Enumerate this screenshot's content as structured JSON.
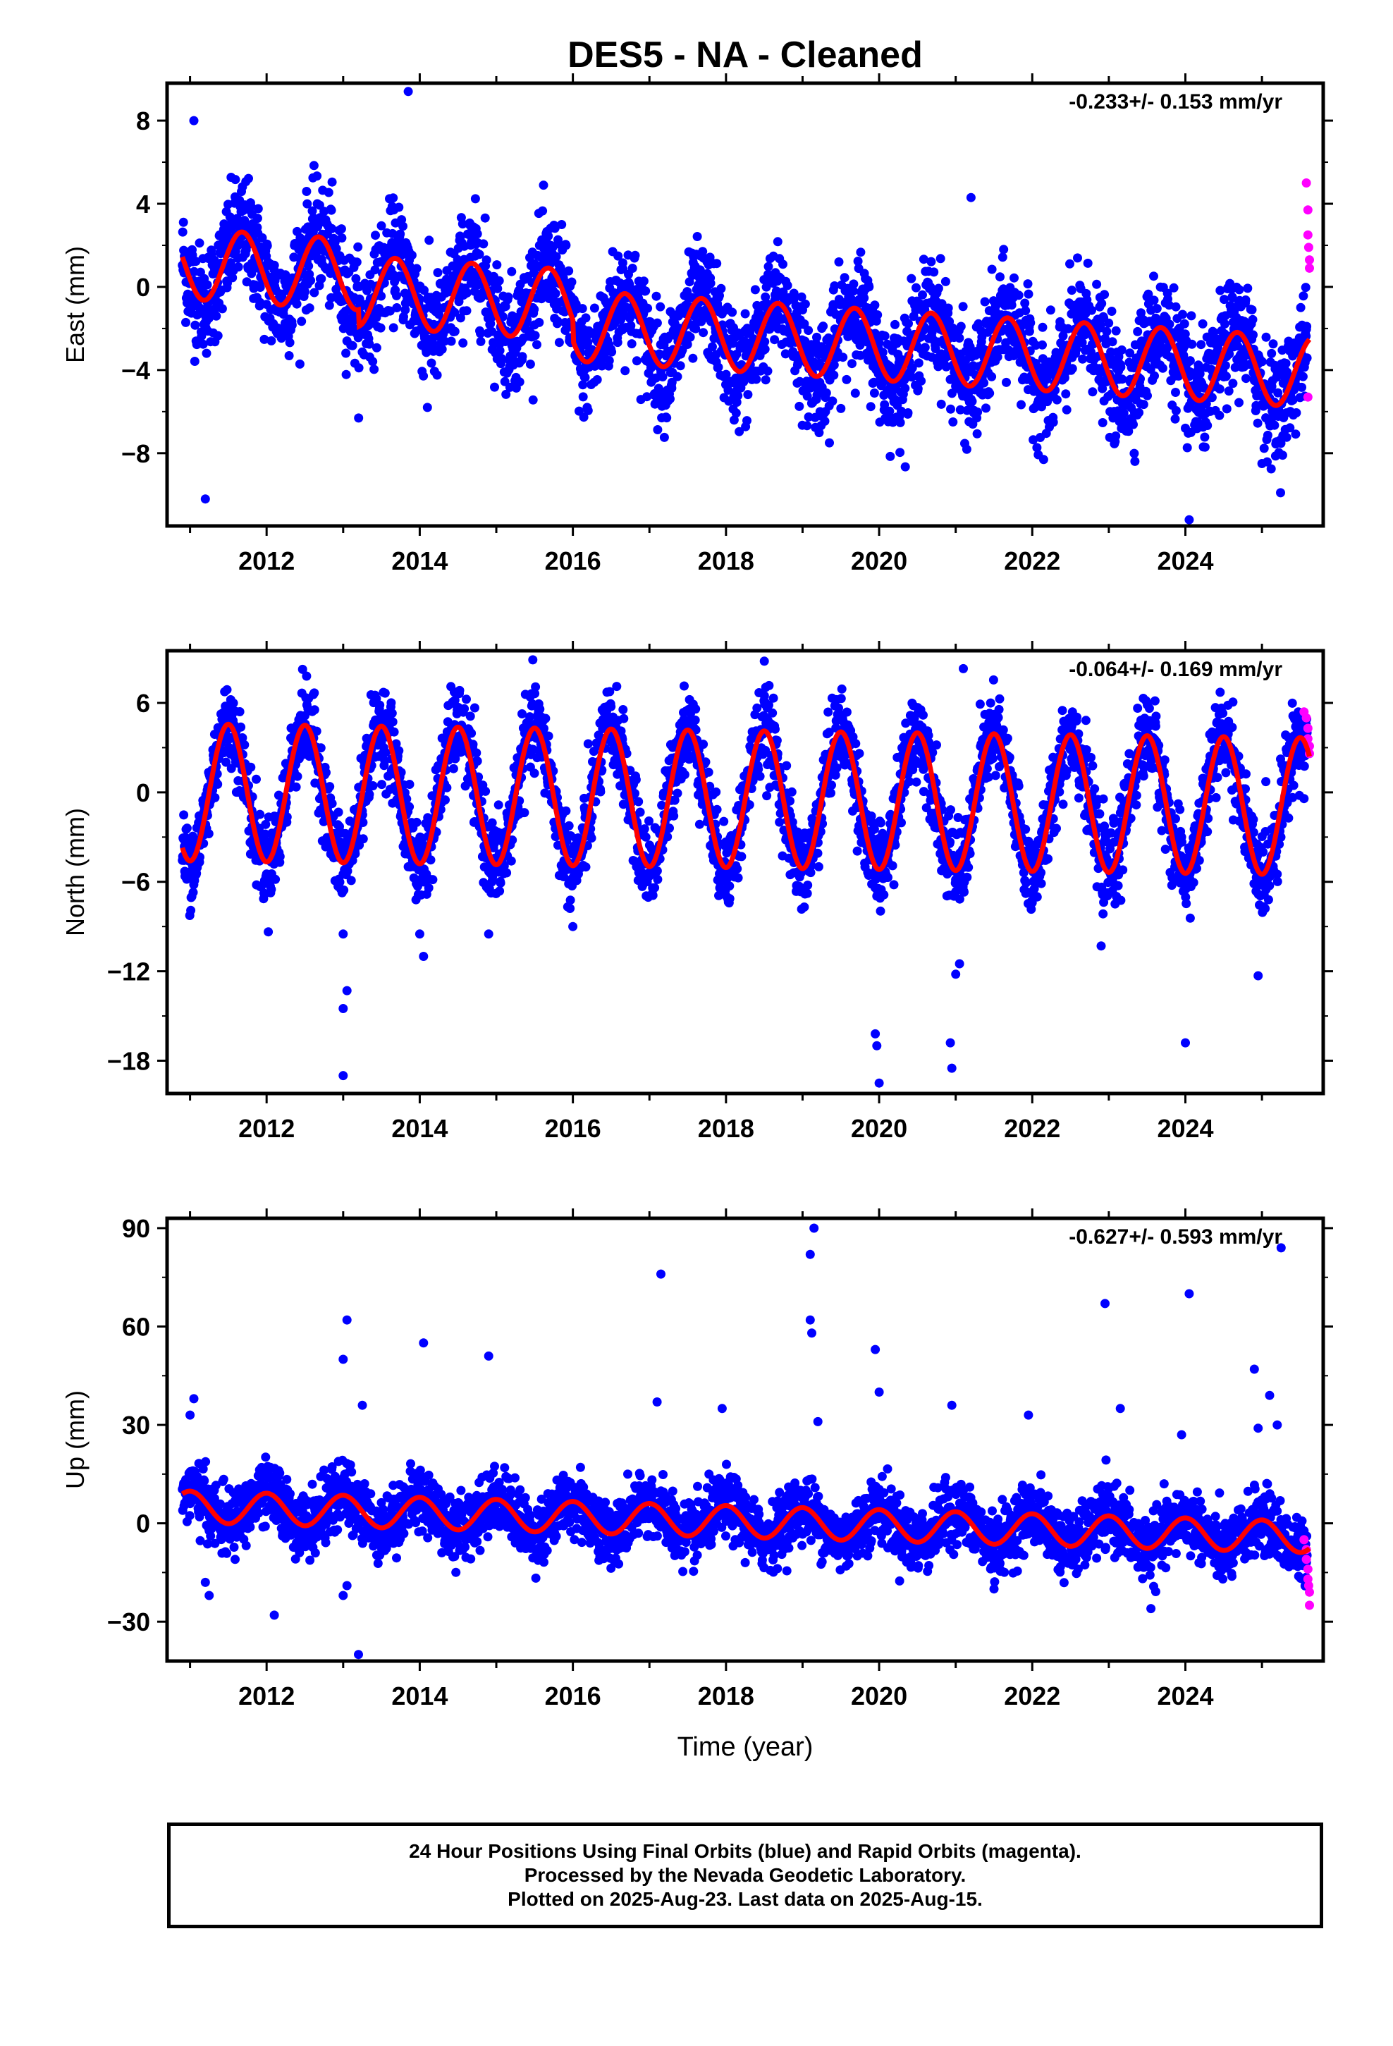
{
  "title": "DES5  - NA - Cleaned",
  "xlabel": "Time (year)",
  "x_tick_labels": [
    "2012",
    "2014",
    "2016",
    "2018",
    "2020",
    "2022",
    "2024"
  ],
  "colors": {
    "final_orbits": "#0000ff",
    "rapid_orbits": "#ff00ff",
    "fit": "#ff0000"
  },
  "footer": {
    "line1": "24 Hour Positions Using Final Orbits (blue) and Rapid Orbits (magenta).",
    "line2": "Processed by the Nevada Geodetic Laboratory.",
    "line3": "Plotted on 2025-Aug-23. Last data on 2025-Aug-15."
  },
  "chart_data": [
    {
      "type": "scatter",
      "panel": "east",
      "ylabel": "East (mm)",
      "rate_label": "-0.233+/- 0.153 mm/yr",
      "xlim": [
        2010.7,
        2025.8
      ],
      "ylim": [
        -11.5,
        9.8
      ],
      "y_ticks": [
        8,
        4,
        0,
        -4,
        -8
      ],
      "y_tick_labels": [
        "8",
        "4",
        "0",
        "−4",
        "−8"
      ],
      "x_ticks": [
        2012,
        2014,
        2016,
        2018,
        2020,
        2022,
        2024
      ],
      "data_start": 2010.9,
      "data_end": 2025.62,
      "seasonal_amplitude": 1.7,
      "seasonal_phase_year": 2011.68,
      "scatter_sigma": 1.3,
      "fit_segments": [
        {
          "x": 2010.9,
          "offset": 0.0
        },
        {
          "x": 2013.0,
          "offset": 0.0
        },
        {
          "x": 2013.2,
          "offset": -0.8
        },
        {
          "x": 2015.8,
          "offset": -0.8
        },
        {
          "x": 2016.0,
          "offset": -1.8
        },
        {
          "x": 2025.62,
          "offset": -1.8
        }
      ],
      "fit_trend": {
        "value_at_2011": 2.3,
        "slope": -0.233
      },
      "outliers": [
        {
          "x": 2011.2,
          "y": -10.2
        },
        {
          "x": 2011.05,
          "y": 8.0
        },
        {
          "x": 2013.85,
          "y": 9.4
        },
        {
          "x": 2014.1,
          "y": -5.8
        },
        {
          "x": 2019.35,
          "y": -7.5
        },
        {
          "x": 2019.3,
          "y": -6.0
        },
        {
          "x": 2024.05,
          "y": -11.2
        },
        {
          "x": 2024.0,
          "y": -6.8
        },
        {
          "x": 2025.0,
          "y": -8.5
        },
        {
          "x": 2013.05,
          "y": -2.6
        },
        {
          "x": 2021.2,
          "y": 4.3
        }
      ],
      "rapid_points": [
        {
          "x": 2025.58,
          "y": 5.0
        },
        {
          "x": 2025.6,
          "y": 3.7
        },
        {
          "x": 2025.6,
          "y": 2.5
        },
        {
          "x": 2025.61,
          "y": 1.9
        },
        {
          "x": 2025.62,
          "y": 1.3
        },
        {
          "x": 2025.62,
          "y": 0.9
        },
        {
          "x": 2025.6,
          "y": -5.3
        }
      ]
    },
    {
      "type": "scatter",
      "panel": "north",
      "ylabel": "North (mm)",
      "rate_label": "-0.064+/- 0.169 mm/yr",
      "xlim": [
        2010.7,
        2025.8
      ],
      "ylim": [
        -20.2,
        9.5
      ],
      "y_ticks": [
        6,
        0,
        -6,
        -12,
        -18
      ],
      "y_tick_labels": [
        "6",
        "0",
        "−6",
        "−12",
        "−18"
      ],
      "x_ticks": [
        2012,
        2014,
        2016,
        2018,
        2020,
        2022,
        2024
      ],
      "data_start": 2010.9,
      "data_end": 2025.62,
      "seasonal_amplitude": 4.6,
      "seasonal_phase_year": 2011.5,
      "scatter_sigma": 1.4,
      "fit_segments": [],
      "fit_trend": {
        "value_at_2011": 0.6,
        "slope": -0.064
      },
      "outliers": [
        {
          "x": 2013.0,
          "y": -19.0
        },
        {
          "x": 2013.0,
          "y": -14.5
        },
        {
          "x": 2013.05,
          "y": -13.3
        },
        {
          "x": 2013.0,
          "y": -9.5
        },
        {
          "x": 2014.05,
          "y": -11.0
        },
        {
          "x": 2014.0,
          "y": -9.5
        },
        {
          "x": 2014.9,
          "y": -9.5
        },
        {
          "x": 2016.0,
          "y": -9.0
        },
        {
          "x": 2019.95,
          "y": -16.2
        },
        {
          "x": 2019.97,
          "y": -17.0
        },
        {
          "x": 2020.0,
          "y": -19.5
        },
        {
          "x": 2020.95,
          "y": -18.5
        },
        {
          "x": 2020.93,
          "y": -16.8
        },
        {
          "x": 2021.0,
          "y": -12.2
        },
        {
          "x": 2021.05,
          "y": -11.5
        },
        {
          "x": 2024.0,
          "y": -16.8
        },
        {
          "x": 2024.95,
          "y": -12.3
        },
        {
          "x": 2022.9,
          "y": -10.3
        },
        {
          "x": 2018.5,
          "y": 8.8
        },
        {
          "x": 2021.1,
          "y": 8.3
        }
      ],
      "rapid_points": [
        {
          "x": 2025.55,
          "y": 5.4
        },
        {
          "x": 2025.58,
          "y": 5.0
        },
        {
          "x": 2025.6,
          "y": 4.3
        },
        {
          "x": 2025.6,
          "y": 3.6
        },
        {
          "x": 2025.62,
          "y": 3.1
        },
        {
          "x": 2025.62,
          "y": 2.6
        }
      ]
    },
    {
      "type": "scatter",
      "panel": "up",
      "ylabel": "Up (mm)",
      "rate_label": "-0.627+/- 0.593 mm/yr",
      "xlim": [
        2010.7,
        2025.8
      ],
      "ylim": [
        -42,
        93
      ],
      "y_ticks": [
        90,
        60,
        30,
        0,
        -30
      ],
      "y_tick_labels": [
        "90",
        "60",
        "30",
        "0",
        "−30"
      ],
      "x_ticks": [
        2012,
        2014,
        2016,
        2018,
        2020,
        2022,
        2024
      ],
      "data_start": 2010.9,
      "data_end": 2025.62,
      "seasonal_amplitude": 4.8,
      "seasonal_phase_year": 2012.0,
      "scatter_sigma": 4.8,
      "fit_segments": [],
      "fit_trend": {
        "value_at_2011": 5.0,
        "slope": -0.627
      },
      "outliers": [
        {
          "x": 2013.2,
          "y": -40.0
        },
        {
          "x": 2013.05,
          "y": 62.0
        },
        {
          "x": 2013.0,
          "y": 50.0
        },
        {
          "x": 2013.25,
          "y": 36.0
        },
        {
          "x": 2014.05,
          "y": 55.0
        },
        {
          "x": 2014.9,
          "y": 51.0
        },
        {
          "x": 2017.15,
          "y": 76.0
        },
        {
          "x": 2017.1,
          "y": 37.0
        },
        {
          "x": 2017.95,
          "y": 35.0
        },
        {
          "x": 2019.15,
          "y": 90.0
        },
        {
          "x": 2019.1,
          "y": 82.0
        },
        {
          "x": 2019.1,
          "y": 62.0
        },
        {
          "x": 2019.12,
          "y": 58.0
        },
        {
          "x": 2019.2,
          "y": 31.0
        },
        {
          "x": 2019.95,
          "y": 53.0
        },
        {
          "x": 2020.0,
          "y": 40.0
        },
        {
          "x": 2020.95,
          "y": 36.0
        },
        {
          "x": 2021.95,
          "y": 33.0
        },
        {
          "x": 2022.95,
          "y": 67.0
        },
        {
          "x": 2023.15,
          "y": 35.0
        },
        {
          "x": 2024.05,
          "y": 70.0
        },
        {
          "x": 2023.95,
          "y": 27.0
        },
        {
          "x": 2024.9,
          "y": 47.0
        },
        {
          "x": 2025.1,
          "y": 39.0
        },
        {
          "x": 2024.95,
          "y": 29.0
        },
        {
          "x": 2025.2,
          "y": 30.0
        },
        {
          "x": 2025.25,
          "y": 84.0
        },
        {
          "x": 2012.1,
          "y": -28.0
        },
        {
          "x": 2011.05,
          "y": 38.0
        },
        {
          "x": 2011.0,
          "y": 33.0
        },
        {
          "x": 2011.25,
          "y": -22.0
        },
        {
          "x": 2011.2,
          "y": -18.0
        },
        {
          "x": 2013.0,
          "y": -22.0
        },
        {
          "x": 2013.05,
          "y": -19.0
        },
        {
          "x": 2023.55,
          "y": -26.0
        },
        {
          "x": 2021.5,
          "y": -20.0
        }
      ],
      "rapid_points": [
        {
          "x": 2025.55,
          "y": -5.0
        },
        {
          "x": 2025.58,
          "y": -8.0
        },
        {
          "x": 2025.58,
          "y": -11.0
        },
        {
          "x": 2025.6,
          "y": -14.0
        },
        {
          "x": 2025.6,
          "y": -17.0
        },
        {
          "x": 2025.61,
          "y": -19.0
        },
        {
          "x": 2025.62,
          "y": -21.0
        },
        {
          "x": 2025.62,
          "y": -25.0
        }
      ]
    }
  ]
}
